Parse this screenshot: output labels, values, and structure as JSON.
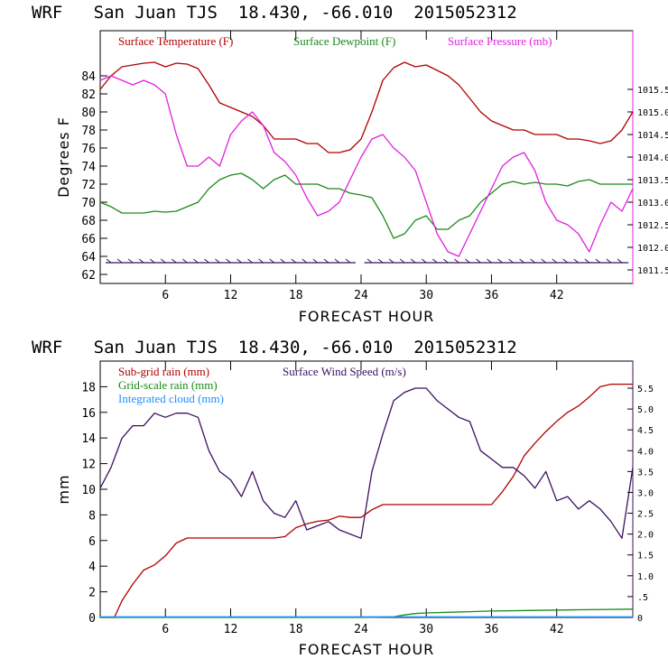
{
  "chart_data": [
    {
      "type": "line",
      "title": "WRF   San Juan TJS  18.430, -66.010  2015052312",
      "xlabel": "FORECAST HOUR",
      "ylabel": "Degrees F",
      "xlim": [
        0,
        49
      ],
      "ylim": [
        61,
        89
      ],
      "ylim_right": [
        1011.2,
        1016.8
      ],
      "x_ticks": [
        6,
        12,
        18,
        24,
        30,
        36,
        42
      ],
      "y_ticks": [
        62,
        64,
        66,
        68,
        70,
        72,
        74,
        76,
        78,
        80,
        82,
        84
      ],
      "y_right_ticks": [
        "1011.5",
        "1012.0",
        "1012.5",
        "1013.0",
        "1013.5",
        "1014.0",
        "1014.5",
        "1015.0",
        "1015.5"
      ],
      "legend_position": "top",
      "series": [
        {
          "name": "Surface Temperature (F)",
          "axis": "left",
          "color": "#b00000",
          "x": [
            0,
            1,
            2,
            3,
            4,
            5,
            6,
            7,
            8,
            9,
            10,
            11,
            12,
            13,
            14,
            15,
            16,
            17,
            18,
            19,
            20,
            21,
            22,
            23,
            24,
            25,
            26,
            27,
            28,
            29,
            30,
            31,
            32,
            33,
            34,
            35,
            36,
            37,
            38,
            39,
            40,
            41,
            42,
            43,
            44,
            45,
            46,
            47,
            48,
            49
          ],
          "y": [
            82.5,
            84.0,
            85.0,
            85.2,
            85.4,
            85.5,
            85.0,
            85.4,
            85.3,
            84.8,
            83.0,
            81.0,
            80.5,
            80.0,
            79.5,
            78.5,
            77.0,
            77.0,
            77.0,
            76.5,
            76.5,
            75.5,
            75.5,
            75.8,
            77.0,
            80.0,
            83.5,
            84.9,
            85.5,
            85.0,
            85.2,
            84.6,
            84.0,
            83.0,
            81.5,
            80.0,
            79.0,
            78.5,
            78.0,
            78.0,
            77.5,
            77.5,
            77.5,
            77.0,
            77.0,
            76.8,
            76.5,
            76.8,
            78.0,
            80.0
          ]
        },
        {
          "name": "Surface Dewpoint (F)",
          "axis": "left",
          "color": "#1a8a1a",
          "x": [
            0,
            1,
            2,
            3,
            4,
            5,
            6,
            7,
            8,
            9,
            10,
            11,
            12,
            13,
            14,
            15,
            16,
            17,
            18,
            19,
            20,
            21,
            22,
            23,
            24,
            25,
            26,
            27,
            28,
            29,
            30,
            31,
            32,
            33,
            34,
            35,
            36,
            37,
            38,
            39,
            40,
            41,
            42,
            43,
            44,
            45,
            46,
            47,
            48,
            49
          ],
          "y": [
            70.0,
            69.5,
            68.8,
            68.8,
            68.8,
            69.0,
            68.9,
            69.0,
            69.5,
            70.0,
            71.5,
            72.5,
            73.0,
            73.2,
            72.5,
            71.5,
            72.5,
            73.0,
            72.0,
            72.0,
            72.0,
            71.5,
            71.5,
            71.0,
            70.8,
            70.5,
            68.5,
            66.0,
            66.5,
            68.0,
            68.5,
            67.0,
            67.0,
            68.0,
            68.5,
            70.0,
            71.0,
            72.0,
            72.3,
            72.0,
            72.2,
            72.0,
            72.0,
            71.8,
            72.3,
            72.5,
            72.0,
            72.0,
            72.0,
            72.0
          ]
        },
        {
          "name": "Surface Pressure (mb)",
          "axis": "right",
          "color": "#e020e0",
          "x": [
            0,
            1,
            2,
            3,
            4,
            5,
            6,
            7,
            8,
            9,
            10,
            11,
            12,
            13,
            14,
            15,
            16,
            17,
            18,
            19,
            20,
            21,
            22,
            23,
            24,
            25,
            26,
            27,
            28,
            29,
            30,
            31,
            32,
            33,
            34,
            35,
            36,
            37,
            38,
            39,
            40,
            41,
            42,
            43,
            44,
            45,
            46,
            47,
            48,
            49
          ],
          "y": [
            1015.7,
            1015.8,
            1015.7,
            1015.6,
            1015.7,
            1015.6,
            1015.4,
            1014.5,
            1013.8,
            1013.8,
            1014.0,
            1013.8,
            1014.5,
            1014.8,
            1015.0,
            1014.7,
            1014.1,
            1013.9,
            1013.6,
            1013.1,
            1012.7,
            1012.8,
            1013.0,
            1013.5,
            1014.0,
            1014.4,
            1014.5,
            1014.2,
            1014.0,
            1013.7,
            1013.0,
            1012.3,
            1011.9,
            1011.8,
            1012.3,
            1012.8,
            1013.3,
            1013.8,
            1014.0,
            1014.1,
            1013.7,
            1013.0,
            1012.6,
            1012.5,
            1012.3,
            1011.9,
            1012.5,
            1013.0,
            1012.8,
            1013.3
          ]
        }
      ],
      "wind_barb_row": {
        "level": 63.3,
        "color": "#3a1060"
      }
    },
    {
      "type": "line",
      "title": "WRF   San Juan TJS  18.430, -66.010  2015052312",
      "xlabel": "FORECAST HOUR",
      "ylabel": "mm",
      "xlim": [
        0,
        49
      ],
      "ylim": [
        0,
        20
      ],
      "ylim_right": [
        0,
        6.15
      ],
      "x_ticks": [
        6,
        12,
        18,
        24,
        30,
        36,
        42
      ],
      "y_ticks": [
        0,
        2,
        4,
        6,
        8,
        10,
        12,
        14,
        16,
        18
      ],
      "y_right_ticks": [
        "0",
        ".5",
        "1.0",
        "1.5",
        "2.0",
        "2.5",
        "3.0",
        "3.5",
        "4.0",
        "4.5",
        "5.0",
        "5.5"
      ],
      "legend_position": "top-left",
      "series": [
        {
          "name": "Sub-grid rain (mm)",
          "axis": "left",
          "color": "#b00000",
          "x": [
            0,
            1,
            1.3,
            2,
            3,
            4,
            5,
            6,
            7,
            8,
            9,
            10,
            11,
            12,
            13,
            14,
            15,
            16,
            17,
            18,
            19,
            20,
            21,
            22,
            23,
            24,
            25,
            26,
            27,
            28,
            29,
            30,
            31,
            32,
            33,
            34,
            35,
            36,
            37,
            38,
            39,
            40,
            41,
            42,
            43,
            44,
            45,
            46,
            47,
            48,
            49
          ],
          "y": [
            0,
            0,
            0,
            1.3,
            2.6,
            3.7,
            4.1,
            4.8,
            5.8,
            6.2,
            6.2,
            6.2,
            6.2,
            6.2,
            6.2,
            6.2,
            6.2,
            6.2,
            6.3,
            7.0,
            7.3,
            7.5,
            7.6,
            7.9,
            7.8,
            7.8,
            8.4,
            8.8,
            8.8,
            8.8,
            8.8,
            8.8,
            8.8,
            8.8,
            8.8,
            8.8,
            8.8,
            8.8,
            9.8,
            11.0,
            12.6,
            13.6,
            14.5,
            15.3,
            16.0,
            16.5,
            17.2,
            18.0,
            18.2,
            18.2,
            18.2
          ]
        },
        {
          "name": "Grid-scale rain (mm)",
          "axis": "left",
          "color": "#1a8a1a",
          "x": [
            0,
            12,
            24,
            27,
            28,
            29,
            30,
            32,
            34,
            36,
            40,
            44,
            49
          ],
          "y": [
            0,
            0,
            0,
            0.05,
            0.2,
            0.3,
            0.35,
            0.4,
            0.45,
            0.5,
            0.55,
            0.6,
            0.65
          ]
        },
        {
          "name": "Integrated cloud (mm)",
          "axis": "left",
          "color": "#1e90ff",
          "x": [
            0,
            49
          ],
          "y": [
            0.05,
            0.05
          ]
        },
        {
          "name": "Surface Wind Speed (m/s)",
          "axis": "right",
          "color": "#3a1060",
          "x": [
            0,
            1,
            2,
            3,
            4,
            5,
            6,
            7,
            8,
            9,
            10,
            11,
            12,
            13,
            14,
            15,
            16,
            17,
            18,
            19,
            20,
            21,
            22,
            23,
            24,
            25,
            26,
            27,
            28,
            29,
            30,
            31,
            32,
            33,
            34,
            35,
            36,
            37,
            38,
            39,
            40,
            41,
            42,
            43,
            44,
            45,
            46,
            47,
            48,
            49
          ],
          "y": [
            3.1,
            3.6,
            4.3,
            4.6,
            4.6,
            4.9,
            4.8,
            4.9,
            4.9,
            4.8,
            4.0,
            3.5,
            3.3,
            2.9,
            3.5,
            2.8,
            2.5,
            2.4,
            2.8,
            2.1,
            2.2,
            2.3,
            2.1,
            2.0,
            1.9,
            3.5,
            4.4,
            5.2,
            5.4,
            5.5,
            5.5,
            5.2,
            5.0,
            4.8,
            4.7,
            4.0,
            3.8,
            3.6,
            3.6,
            3.4,
            3.1,
            3.5,
            2.8,
            2.9,
            2.6,
            2.8,
            2.6,
            2.3,
            1.9,
            3.6
          ]
        }
      ]
    }
  ]
}
